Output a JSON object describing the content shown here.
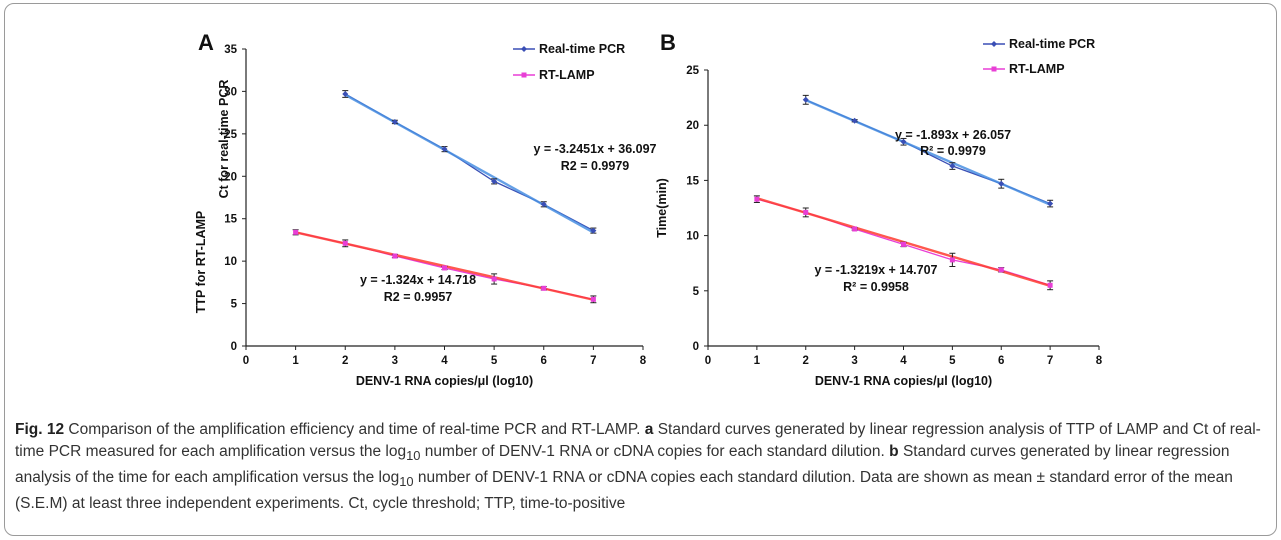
{
  "chart_data": [
    {
      "type": "line",
      "panel_letter": "A",
      "xlabel": "DENV-1 RNA copies/μl (log10)",
      "ylabel_lines": [
        "TTP for RT-LAMP",
        "Ct for real-time PCR"
      ],
      "xlim": [
        0,
        8
      ],
      "ylim": [
        0,
        35
      ],
      "xticks": [
        0,
        1,
        2,
        3,
        4,
        5,
        6,
        7,
        8
      ],
      "yticks": [
        0,
        5,
        10,
        15,
        20,
        25,
        30,
        35
      ],
      "legend_position": "top-right",
      "series": [
        {
          "name": "Real-time PCR",
          "color": "#3a4fb5",
          "fit_color": "#4a90e2",
          "marker": "diamond",
          "x": [
            2,
            3,
            4,
            5,
            6,
            7
          ],
          "y": [
            29.7,
            26.4,
            23.2,
            19.4,
            16.7,
            13.6
          ],
          "err": [
            0.4,
            0.2,
            0.3,
            0.3,
            0.3,
            0.3
          ],
          "fit": {
            "slope": -3.2451,
            "intercept": 36.097
          },
          "equation": "y = -3.2451x + 36.097",
          "r2_label": "R2 = 0.9979"
        },
        {
          "name": "RT-LAMP",
          "color": "#e83fd6",
          "fit_color": "#ff3b30",
          "marker": "square",
          "x": [
            1,
            2,
            3,
            4,
            5,
            6,
            7
          ],
          "y": [
            13.4,
            12.1,
            10.6,
            9.2,
            7.9,
            6.8,
            5.5
          ],
          "err": [
            0.3,
            0.4,
            0.2,
            0.2,
            0.6,
            0.2,
            0.4
          ],
          "fit": {
            "slope": -1.324,
            "intercept": 14.718
          },
          "equation": "y = -1.324x + 14.718",
          "r2_label": "R2 = 0.9957"
        }
      ]
    },
    {
      "type": "line",
      "panel_letter": "B",
      "xlabel": "DENV-1 RNA copies/μl (log10)",
      "ylabel": "Time(min)",
      "xlim": [
        0,
        8
      ],
      "ylim": [
        0,
        25
      ],
      "xticks": [
        0,
        1,
        2,
        3,
        4,
        5,
        6,
        7,
        8
      ],
      "yticks": [
        0,
        5,
        10,
        15,
        20,
        25
      ],
      "legend_position": "top-right",
      "series": [
        {
          "name": "Real-time PCR",
          "color": "#3a4fb5",
          "fit_color": "#4a90e2",
          "marker": "diamond",
          "x": [
            2,
            3,
            4,
            5,
            6,
            7
          ],
          "y": [
            22.3,
            20.4,
            18.5,
            16.3,
            14.7,
            12.9
          ],
          "err": [
            0.4,
            0.1,
            0.3,
            0.3,
            0.4,
            0.3
          ],
          "fit": {
            "slope": -1.893,
            "intercept": 26.057
          },
          "equation": "y = -1.893x + 26.057",
          "r2_label": "R² = 0.9979"
        },
        {
          "name": "RT-LAMP",
          "color": "#e83fd6",
          "fit_color": "#ff3b30",
          "marker": "square",
          "x": [
            1,
            2,
            3,
            4,
            5,
            6,
            7
          ],
          "y": [
            13.3,
            12.1,
            10.6,
            9.2,
            7.8,
            6.9,
            5.5
          ],
          "err": [
            0.3,
            0.4,
            0.1,
            0.2,
            0.6,
            0.2,
            0.4
          ],
          "fit": {
            "slope": -1.3219,
            "intercept": 14.707
          },
          "equation": "y = -1.3219x + 14.707",
          "r2_label": "R² = 0.9958"
        }
      ]
    }
  ],
  "caption": {
    "fig_label": "Fig. 12",
    "title": "Comparison of the amplification efficiency and time of real-time PCR and RT-LAMP.",
    "a_label": "a",
    "a_text_1": "Standard curves generated by linear regression analysis of TTP of LAMP and Ct of real-time PCR measured for each amplification versus the log",
    "a_sub": "10",
    "a_text_2": "number of DENV-1 RNA or cDNA copies for each standard dilution.",
    "b_label": "b",
    "b_text_1": "Standard curves generated by linear regression analysis of the time for each amplification versus the log",
    "b_sub": "10",
    "b_text_2": "number of DENV-1 RNA or cDNA copies each standard dilution. Data are shown as mean ± standard error of the mean (S.E.M) at least three independent experiments. Ct, cycle threshold; TTP, time-to-positive"
  }
}
